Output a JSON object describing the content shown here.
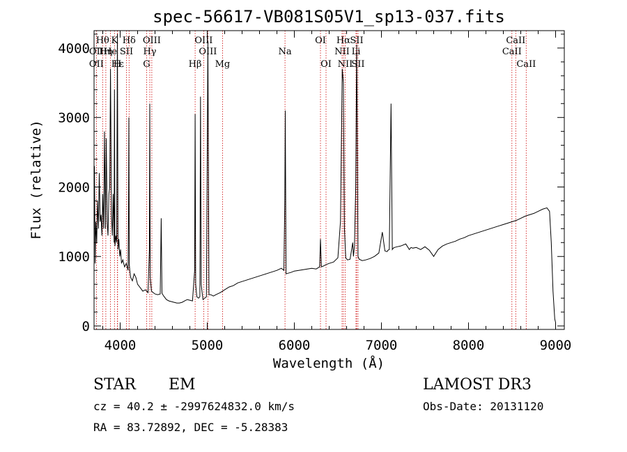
{
  "chart_data": {
    "type": "line",
    "title": "spec-56617-VB081S05V1_sp13-037.fits",
    "xlabel": "Wavelength (Å)",
    "ylabel": "Flux (relative)",
    "xlim": [
      3700,
      9100
    ],
    "ylim": [
      -50,
      4250
    ],
    "x_ticks": [
      4000,
      5000,
      6000,
      7000,
      8000,
      9000
    ],
    "y_ticks": [
      0,
      1000,
      2000,
      3000,
      4000
    ],
    "grid": false,
    "series": [
      {
        "name": "spectrum",
        "x": [
          3700,
          3705,
          3712,
          3720,
          3730,
          3740,
          3750,
          3760,
          3770,
          3780,
          3790,
          3800,
          3810,
          3820,
          3830,
          3840,
          3850,
          3860,
          3870,
          3880,
          3889,
          3900,
          3910,
          3920,
          3930,
          3934,
          3940,
          3950,
          3960,
          3968,
          3975,
          3985,
          3995,
          4005,
          4015,
          4030,
          4050,
          4070,
          4090,
          4096,
          4100,
          4104,
          4110,
          4120,
          4140,
          4160,
          4180,
          4200,
          4230,
          4260,
          4290,
          4320,
          4335,
          4340,
          4345,
          4360,
          4380,
          4400,
          4430,
          4460,
          4471,
          4480,
          4500,
          4530,
          4560,
          4590,
          4620,
          4650,
          4680,
          4710,
          4740,
          4770,
          4800,
          4830,
          4855,
          4861,
          4867,
          4880,
          4900,
          4915,
          4922,
          4930,
          4950,
          4970,
          4990,
          5007,
          5020,
          5040,
          5070,
          5100,
          5150,
          5200,
          5250,
          5300,
          5350,
          5400,
          5450,
          5500,
          5550,
          5600,
          5650,
          5700,
          5750,
          5800,
          5850,
          5880,
          5890,
          5896,
          5905,
          5930,
          5960,
          6000,
          6050,
          6100,
          6150,
          6200,
          6250,
          6290,
          6300,
          6310,
          6330,
          6360,
          6400,
          6450,
          6500,
          6530,
          6550,
          6563,
          6575,
          6590,
          6610,
          6640,
          6670,
          6678,
          6690,
          6705,
          6716,
          6731,
          6745,
          6780,
          6820,
          6870,
          6920,
          6970,
          7010,
          7040,
          7065,
          7075,
          7090,
          7110,
          7125,
          7136,
          7150,
          7180,
          7220,
          7280,
          7320,
          7340,
          7360,
          7400,
          7450,
          7500,
          7550,
          7600,
          7650,
          7700,
          7750,
          7800,
          7850,
          7900,
          7950,
          8000,
          8050,
          8100,
          8150,
          8200,
          8250,
          8300,
          8350,
          8400,
          8450,
          8500,
          8550,
          8600,
          8650,
          8700,
          8750,
          8800,
          8850,
          8900,
          8930,
          8950,
          8970,
          8990,
          9000
        ],
        "y": [
          1300,
          2300,
          900,
          1500,
          1200,
          1800,
          1400,
          2200,
          1500,
          1600,
          1300,
          1900,
          1400,
          2800,
          1400,
          2700,
          1500,
          1300,
          1900,
          2000,
          3700,
          1600,
          1300,
          1900,
          1200,
          3400,
          1150,
          1300,
          1200,
          4200,
          1100,
          1250,
          1000,
          1100,
          900,
          950,
          850,
          900,
          800,
          1700,
          3000,
          900,
          800,
          700,
          650,
          750,
          700,
          600,
          550,
          500,
          520,
          480,
          1100,
          3200,
          700,
          500,
          480,
          460,
          450,
          460,
          1550,
          470,
          430,
          380,
          360,
          350,
          340,
          330,
          330,
          340,
          360,
          380,
          370,
          360,
          800,
          3050,
          600,
          420,
          400,
          420,
          3300,
          600,
          380,
          400,
          420,
          4100,
          450,
          450,
          430,
          450,
          480,
          520,
          560,
          580,
          620,
          640,
          660,
          680,
          700,
          720,
          740,
          760,
          780,
          800,
          830,
          800,
          1800,
          3100,
          750,
          760,
          770,
          790,
          800,
          810,
          820,
          830,
          820,
          850,
          1250,
          850,
          860,
          880,
          900,
          920,
          980,
          1500,
          3700,
          3500,
          1400,
          980,
          950,
          960,
          1200,
          1000,
          1150,
          2000,
          4050,
          1000,
          960,
          940,
          950,
          970,
          1000,
          1050,
          1350,
          1080,
          1070,
          1090,
          1100,
          3200,
          1100,
          1120,
          1130,
          1140,
          1150,
          1180,
          1100,
          1130,
          1120,
          1130,
          1100,
          1140,
          1090,
          1000,
          1100,
          1150,
          1180,
          1200,
          1220,
          1250,
          1270,
          1300,
          1320,
          1340,
          1360,
          1380,
          1400,
          1420,
          1440,
          1460,
          1480,
          1500,
          1520,
          1550,
          1580,
          1600,
          1620,
          1650,
          1680,
          1700,
          1650,
          1200,
          500,
          100,
          50
        ]
      }
    ],
    "line_markers": [
      {
        "label": "Hθ",
        "wavelength": 3798,
        "row": 1
      },
      {
        "label": "K",
        "wavelength": 3934,
        "row": 1
      },
      {
        "label": "Hδ",
        "wavelength": 4102,
        "row": 1
      },
      {
        "label": "OIII",
        "wavelength": 4363,
        "row": 1
      },
      {
        "label": "OIII",
        "wavelength": 4959,
        "row": 1
      },
      {
        "label": "OI",
        "wavelength": 6300,
        "row": 1
      },
      {
        "label": "Hα",
        "wavelength": 6563,
        "row": 1
      },
      {
        "label": "SII",
        "wavelength": 6716,
        "row": 1
      },
      {
        "label": "CaII",
        "wavelength": 8542,
        "row": 1
      },
      {
        "label": "OII",
        "wavelength": 3727,
        "row": 2
      },
      {
        "label": "Hη",
        "wavelength": 3835,
        "row": 2
      },
      {
        "label": "He",
        "wavelength": 3889,
        "row": 2
      },
      {
        "label": "SII",
        "wavelength": 4072,
        "row": 2
      },
      {
        "label": "Hγ",
        "wavelength": 4340,
        "row": 2
      },
      {
        "label": "OIII",
        "wavelength": 5007,
        "row": 2
      },
      {
        "label": "Na",
        "wavelength": 5893,
        "row": 2
      },
      {
        "label": "NII",
        "wavelength": 6548,
        "row": 2
      },
      {
        "label": "Li",
        "wavelength": 6708,
        "row": 2
      },
      {
        "label": "CaII",
        "wavelength": 8498,
        "row": 2
      },
      {
        "label": "OII",
        "wavelength": 3727,
        "row": 3
      },
      {
        "label": "Hε",
        "wavelength": 3970,
        "row": 3
      },
      {
        "label": "H",
        "wavelength": 3968,
        "row": 3
      },
      {
        "label": "G",
        "wavelength": 4304,
        "row": 3
      },
      {
        "label": "Hβ",
        "wavelength": 4861,
        "row": 3
      },
      {
        "label": "Mg",
        "wavelength": 5175,
        "row": 3
      },
      {
        "label": "OI",
        "wavelength": 6364,
        "row": 3
      },
      {
        "label": "NII",
        "wavelength": 6584,
        "row": 3
      },
      {
        "label": "SII",
        "wavelength": 6731,
        "row": 3
      },
      {
        "label": "CaII",
        "wavelength": 8662,
        "row": 3
      }
    ]
  },
  "info": {
    "object_class": "STAR",
    "subclass": "EM",
    "survey": "LAMOST DR3",
    "cz": "cz = 40.2 ± -2997624832.0 km/s",
    "obs_date": "Obs-Date: 20131120",
    "coords": "RA =  83.72892, DEC =   -5.28383"
  },
  "colors": {
    "spectrum": "#000000",
    "marker": "#cc0000",
    "axes": "#000000"
  }
}
